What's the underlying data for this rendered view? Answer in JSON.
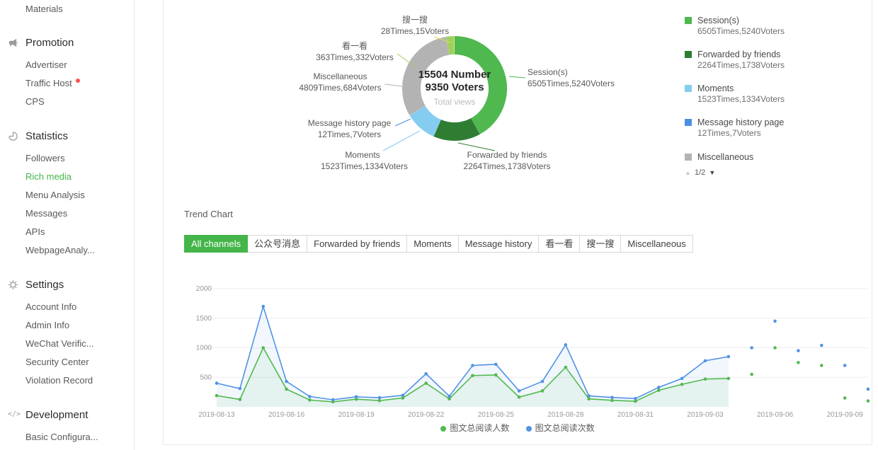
{
  "colors": {
    "accent_green": "#44b549",
    "line_green": "#52b94f",
    "line_blue": "#5293e4",
    "unread_red": "#fa5151"
  },
  "sidebar": {
    "top_item": "Materials",
    "sections": [
      {
        "title": "Promotion",
        "icon": "megaphone-icon",
        "items": [
          {
            "label": "Advertiser"
          },
          {
            "label": "Traffic Host",
            "unread_dot": true
          },
          {
            "label": "CPS"
          }
        ]
      },
      {
        "title": "Statistics",
        "icon": "pie-chart-icon",
        "items": [
          {
            "label": "Followers"
          },
          {
            "label": "Rich media",
            "active": true
          },
          {
            "label": "Menu Analysis"
          },
          {
            "label": "Messages"
          },
          {
            "label": "APIs"
          },
          {
            "label": "WebpageAnaly..."
          }
        ]
      },
      {
        "title": "Settings",
        "icon": "gear-icon",
        "items": [
          {
            "label": "Account Info"
          },
          {
            "label": "Admin Info"
          },
          {
            "label": "WeChat Verific..."
          },
          {
            "label": "Security Center"
          },
          {
            "label": "Violation Record"
          }
        ]
      },
      {
        "title": "Development",
        "icon": "code-icon",
        "items": [
          {
            "label": "Basic Configura..."
          }
        ]
      }
    ]
  },
  "pie_center": {
    "line1": "15504 Number",
    "line2": "9350 Voters",
    "caption": "Total views"
  },
  "callouts": [
    {
      "name": "搜一搜",
      "stats": "28Times,15Voters"
    },
    {
      "name": "看一看",
      "stats": "363Times,332Voters"
    },
    {
      "name": "Miscellaneous",
      "stats": "4809Times,684Voters"
    },
    {
      "name": "Message history page",
      "stats": "12Times,7Voters"
    },
    {
      "name": "Moments",
      "stats": "1523Times,1334Voters"
    },
    {
      "name": "Forwarded by friends",
      "stats": "2264Times,1738Voters"
    },
    {
      "name": "Session(s)",
      "stats": "6505Times,5240Voters"
    }
  ],
  "legend": {
    "items": [
      {
        "label": "Session(s)",
        "stats": "6505Times,5240Voters",
        "color": "#4fb84f"
      },
      {
        "label": "Forwarded by friends",
        "stats": "2264Times,1738Voters",
        "color": "#2e7d32"
      },
      {
        "label": "Moments",
        "stats": "1523Times,1334Voters",
        "color": "#85cdf0"
      },
      {
        "label": "Message history page",
        "stats": "12Times,7Voters",
        "color": "#4a90e2"
      },
      {
        "label": "Miscellaneous",
        "stats": "",
        "color": "#b3b3b3"
      }
    ],
    "pager": "1/2"
  },
  "trend": {
    "title": "Trend Chart",
    "tabs": [
      {
        "label": "All channels",
        "active": true
      },
      {
        "label": "公众号消息"
      },
      {
        "label": "Forwarded by friends"
      },
      {
        "label": "Moments"
      },
      {
        "label": "Message history"
      },
      {
        "label": "看一看"
      },
      {
        "label": "搜一搜"
      },
      {
        "label": "Miscellaneous"
      }
    ]
  },
  "chart_data": [
    {
      "type": "pie",
      "title": "Total views",
      "center_number": 15504,
      "center_voters": 9350,
      "segments": [
        {
          "label": "Session(s)",
          "times": 6505,
          "voters": 5240,
          "color": "#4fb84f"
        },
        {
          "label": "Forwarded by friends",
          "times": 2264,
          "voters": 1738,
          "color": "#2e7d32"
        },
        {
          "label": "Moments",
          "times": 1523,
          "voters": 1334,
          "color": "#85cdf0"
        },
        {
          "label": "Message history page",
          "times": 12,
          "voters": 7,
          "color": "#4a90e2"
        },
        {
          "label": "Miscellaneous",
          "times": 4809,
          "voters": 684,
          "color": "#b3b3b3"
        },
        {
          "label": "看一看",
          "times": 363,
          "voters": 332,
          "color": "#9fd05f"
        },
        {
          "label": "搜一搜",
          "times": 28,
          "voters": 15,
          "color": "#d9e34f"
        }
      ]
    },
    {
      "type": "line",
      "x": [
        "2019-08-13",
        "2019-08-14",
        "2019-08-15",
        "2019-08-16",
        "2019-08-17",
        "2019-08-18",
        "2019-08-19",
        "2019-08-20",
        "2019-08-21",
        "2019-08-22",
        "2019-08-23",
        "2019-08-24",
        "2019-08-25",
        "2019-08-26",
        "2019-08-27",
        "2019-08-28",
        "2019-08-29",
        "2019-08-30",
        "2019-08-31",
        "2019-09-01",
        "2019-09-02",
        "2019-09-03",
        "2019-09-04",
        "2019-09-05",
        "2019-09-06",
        "2019-09-07",
        "2019-09-08",
        "2019-09-09",
        "2019-09-10"
      ],
      "series": [
        {
          "name": "图文总阅读人数",
          "color": "#52b94f",
          "values": [
            190,
            125,
            1000,
            300,
            115,
            85,
            130,
            105,
            150,
            400,
            135,
            530,
            540,
            165,
            270,
            670,
            135,
            110,
            95,
            280,
            380,
            470,
            480,
            550,
            1000,
            750,
            700,
            150,
            100
          ]
        },
        {
          "name": "图文总阅读次数",
          "color": "#5293e4",
          "values": [
            400,
            310,
            1700,
            430,
            175,
            120,
            170,
            155,
            195,
            560,
            180,
            700,
            720,
            270,
            430,
            1050,
            185,
            160,
            140,
            330,
            480,
            780,
            850,
            1000,
            1450,
            950,
            1040,
            700,
            300
          ]
        }
      ],
      "connected_points": 23,
      "ylim": [
        0,
        2000
      ],
      "ytick_step": 500,
      "xtick_every": 3,
      "grid": true,
      "legend_position": "bottom"
    }
  ]
}
